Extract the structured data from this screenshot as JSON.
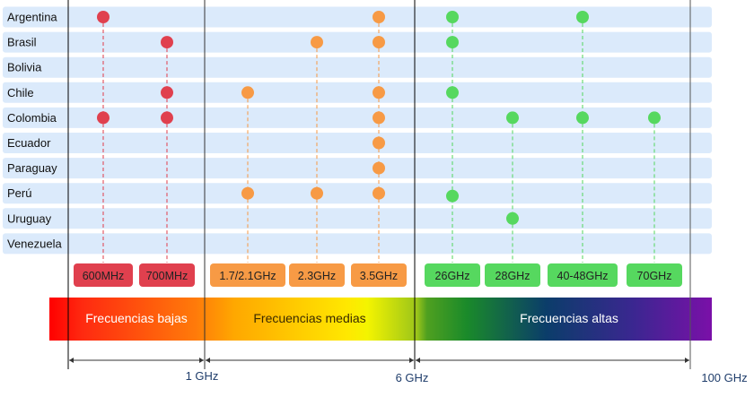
{
  "chart_data": {
    "type": "dot-matrix",
    "rows": [
      "Argentina",
      "Brasil",
      "Bolivia",
      "Chile",
      "Colombia",
      "Ecuador",
      "Paraguay",
      "Perú",
      "Uruguay",
      "Venezuela"
    ],
    "bands": [
      {
        "label": "600MHz",
        "group": "low"
      },
      {
        "label": "700MHz",
        "group": "low"
      },
      {
        "label": "1.7/2.1GHz",
        "group": "mid"
      },
      {
        "label": "2.3GHz",
        "group": "mid"
      },
      {
        "label": "3.5GHz",
        "group": "mid"
      },
      {
        "label": "26GHz",
        "group": "high"
      },
      {
        "label": "28GHz",
        "group": "high"
      },
      {
        "label": "40-48GHz",
        "group": "high"
      },
      {
        "label": "70GHz",
        "group": "high"
      }
    ],
    "assignments": {
      "Argentina": [
        "600MHz",
        "3.5GHz",
        "26GHz",
        "40-48GHz"
      ],
      "Brasil": [
        "700MHz",
        "2.3GHz",
        "3.5GHz",
        "26GHz"
      ],
      "Bolivia": [],
      "Chile": [
        "700MHz",
        "1.7/2.1GHz",
        "3.5GHz",
        "26GHz"
      ],
      "Colombia": [
        "600MHz",
        "700MHz",
        "3.5GHz",
        "28GHz",
        "40-48GHz",
        "70GHz"
      ],
      "Ecuador": [
        "3.5GHz"
      ],
      "Paraguay": [
        "3.5GHz"
      ],
      "Perú": [
        "1.7/2.1GHz",
        "2.3GHz",
        "3.5GHz",
        "26GHz"
      ],
      "Uruguay": [
        "28GHz"
      ],
      "Venezuela": []
    },
    "groups": {
      "low": {
        "label": "Frecuencias bajas",
        "color": "#e0404e"
      },
      "mid": {
        "label": "Frecuencias medias",
        "color": "#f79a45"
      },
      "high": {
        "label": "Frecuencias altas",
        "color": "#56d85f"
      }
    },
    "axis_ticks": [
      "1 GHz",
      "6 GHz",
      "100 GHz"
    ],
    "row_background": "#dbeafb",
    "axis_label_color": "#1f3d6b"
  }
}
